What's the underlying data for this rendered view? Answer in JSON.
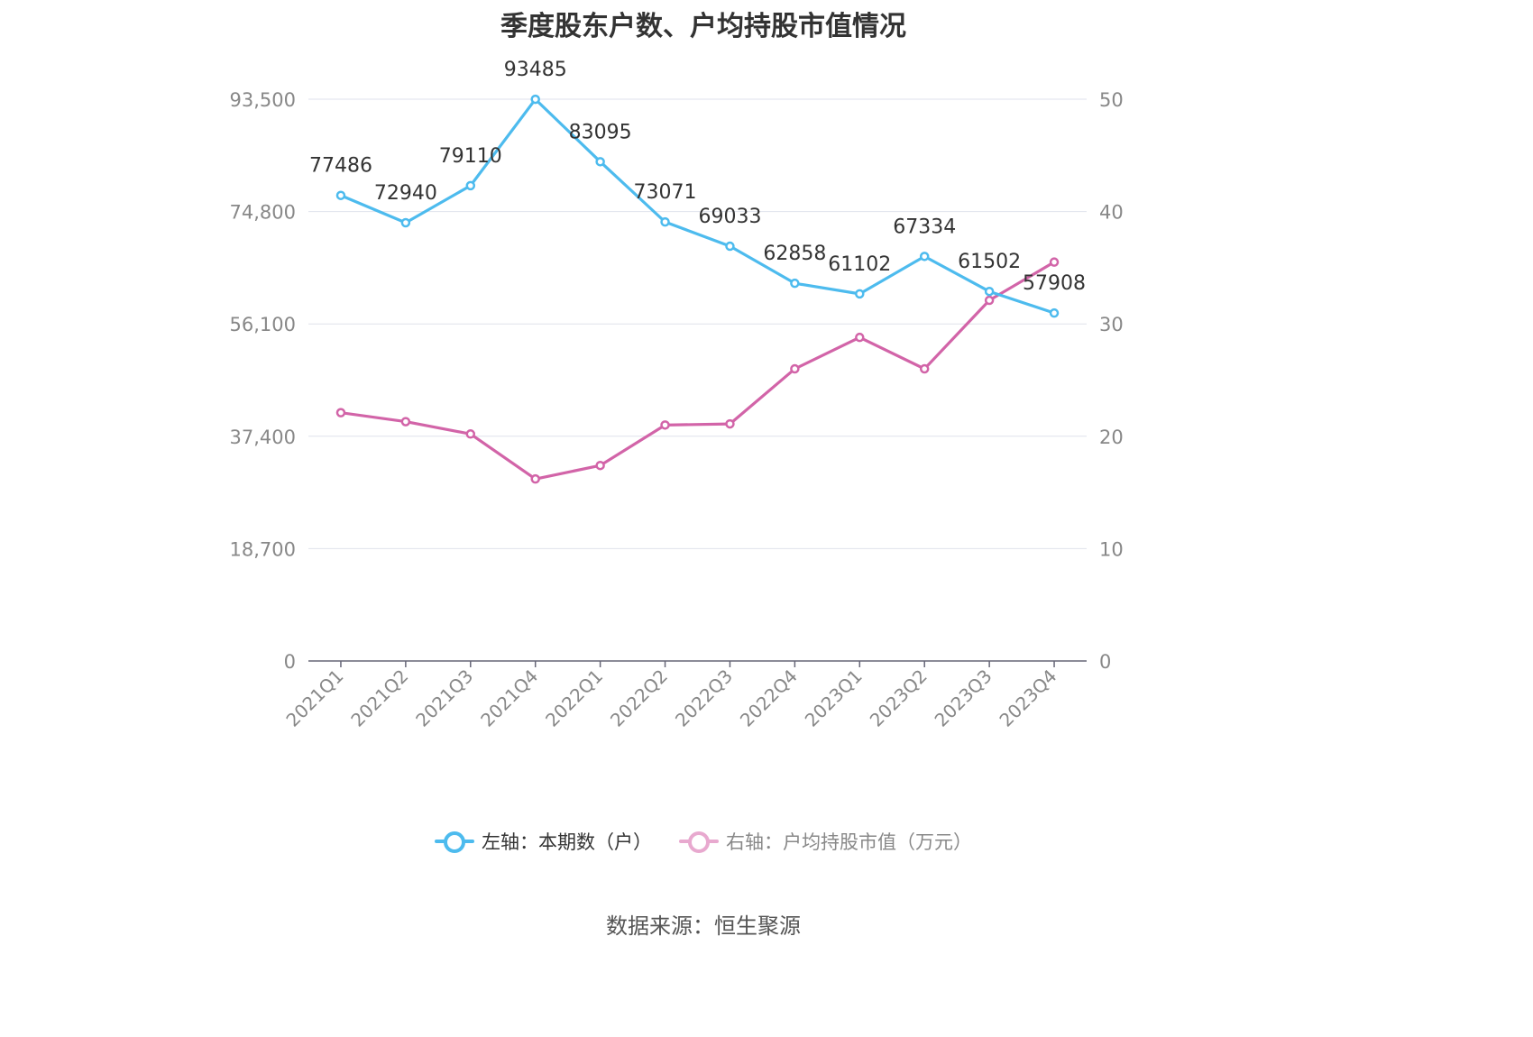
{
  "chart_data": {
    "type": "line",
    "title": "季度股东户数、户均持股市值情况",
    "categories": [
      "2021Q1",
      "2021Q2",
      "2021Q3",
      "2021Q4",
      "2022Q1",
      "2022Q2",
      "2022Q3",
      "2022Q4",
      "2023Q1",
      "2023Q2",
      "2023Q3",
      "2023Q4"
    ],
    "y_left": {
      "min": 0,
      "max": 93500,
      "ticks": [
        "0",
        "18,700",
        "37,400",
        "56,100",
        "74,800",
        "93,500"
      ]
    },
    "y_right": {
      "min": 0,
      "max": 50,
      "ticks": [
        "0",
        "10",
        "20",
        "30",
        "40",
        "50"
      ]
    },
    "grid": true,
    "legend_position": "bottom",
    "series": [
      {
        "name": "左轴：本期数（户）",
        "axis": "left",
        "color": "#4dbbee",
        "values": [
          77486,
          72940,
          79110,
          93485,
          83095,
          73071,
          69033,
          62858,
          61102,
          67334,
          61502,
          57908
        ],
        "labels": [
          "77486",
          "72940",
          "79110",
          "93485",
          "83095",
          "73071",
          "69033",
          "62858",
          "61102",
          "67334",
          "61502",
          "57908"
        ]
      },
      {
        "name": "右轴：户均持股市值（万元）",
        "axis": "right",
        "color": "#d264a8",
        "values": [
          22.1,
          21.3,
          20.2,
          16.2,
          17.4,
          21.0,
          21.1,
          26.0,
          28.8,
          26.0,
          32.1,
          35.5
        ]
      }
    ]
  },
  "source_text": "数据来源：恒生聚源"
}
